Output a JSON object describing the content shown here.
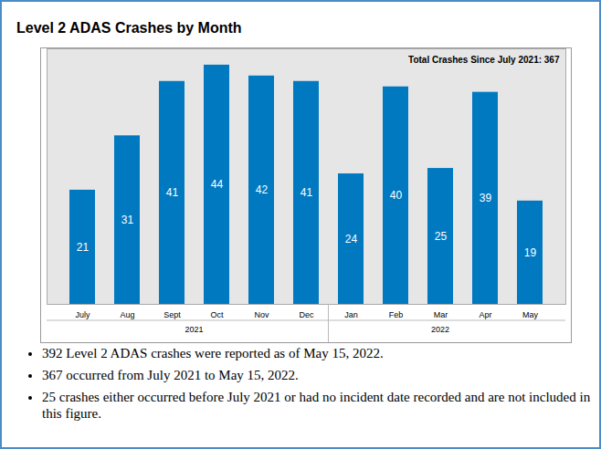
{
  "chart_data": {
    "type": "bar",
    "title": "Level 2 ADAS Crashes by Month",
    "annotation": "Total Crashes Since July 2021: 367",
    "categories": [
      "July",
      "Aug",
      "Sept",
      "Oct",
      "Nov",
      "Dec",
      "Jan",
      "Feb",
      "Mar",
      "Apr",
      "May"
    ],
    "values": [
      21,
      31,
      41,
      44,
      42,
      41,
      24,
      40,
      25,
      39,
      19
    ],
    "color": "#0079c1",
    "ylim": [
      0,
      47
    ],
    "data_labels": true,
    "tick_labels": "x",
    "x_groups": [
      {
        "label": "2021",
        "from": "July",
        "to": "Dec"
      },
      {
        "label": "2022",
        "from": "Jan",
        "to": "May"
      }
    ]
  },
  "notes": [
    "392 Level 2 ADAS crashes were reported as of May 15, 2022.",
    "367 occurred from July 2021 to May 15, 2022.",
    "25 crashes either occurred before July 2021 or had no incident date recorded and are not included in this figure."
  ]
}
